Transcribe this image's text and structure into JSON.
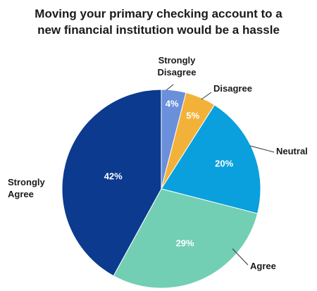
{
  "chart_data": {
    "type": "pie",
    "title_lines": [
      "Moving your primary checking account to a",
      "new financial institution would be a hassle"
    ],
    "slices": [
      {
        "name": "Strongly Disagree",
        "label_lines": [
          "Strongly",
          "Disagree"
        ],
        "value": 4,
        "value_label": "4%",
        "color": "#6a8fdb"
      },
      {
        "name": "Disagree",
        "label_lines": [
          "Disagree"
        ],
        "value": 5,
        "value_label": "5%",
        "color": "#f2b23a"
      },
      {
        "name": "Neutral",
        "label_lines": [
          "Neutral"
        ],
        "value": 20,
        "value_label": "20%",
        "color": "#0aa0dd"
      },
      {
        "name": "Agree",
        "label_lines": [
          "Agree"
        ],
        "value": 29,
        "value_label": "29%",
        "color": "#72cfb3"
      },
      {
        "name": "Strongly Agree",
        "label_lines": [
          "Strongly",
          "Agree"
        ],
        "value": 42,
        "value_label": "42%",
        "color": "#0b3a8f"
      }
    ]
  }
}
